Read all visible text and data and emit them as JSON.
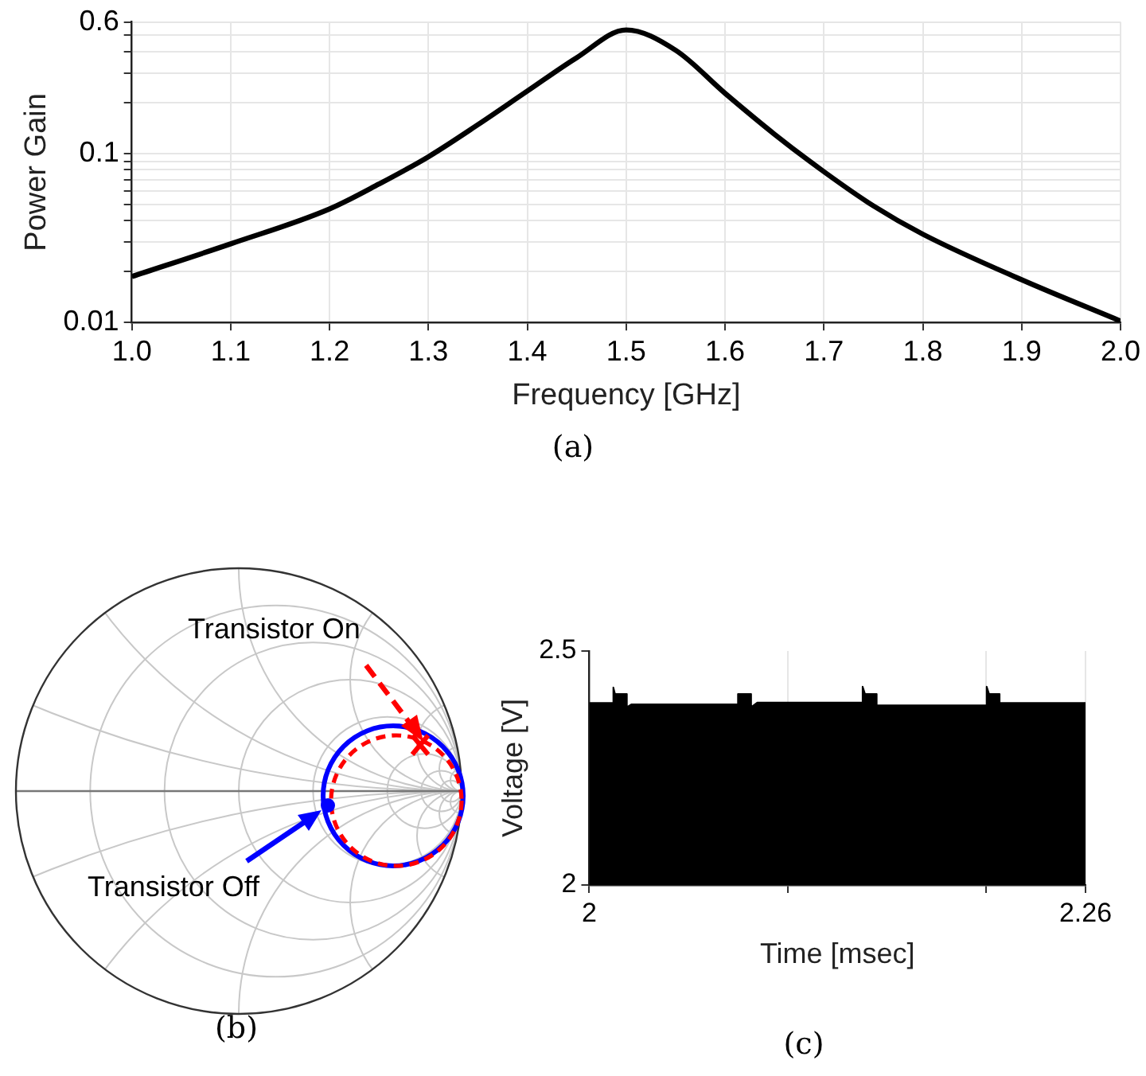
{
  "chart_data": [
    {
      "type": "line",
      "xlabel": "Frequency [GHz]",
      "ylabel": "Power Gain",
      "log": "y",
      "grid": true,
      "legend": false,
      "marker": "none",
      "line_style": "solid",
      "x": [
        1.0,
        1.1,
        1.2,
        1.25,
        1.3,
        1.35,
        1.4,
        1.45,
        1.5,
        1.55,
        1.6,
        1.65,
        1.7,
        1.75,
        1.8,
        1.9,
        2.0
      ],
      "series": [
        {
          "color": "#000000",
          "values": [
            0.0187,
            0.0292,
            0.047,
            0.066,
            0.0957,
            0.148,
            0.234,
            0.369,
            0.538,
            0.408,
            0.227,
            0.13,
            0.078,
            0.049,
            0.0333,
            0.0179,
            0.0102
          ]
        }
      ],
      "xlim": [
        1.0,
        2.0
      ],
      "xticks": [
        {
          "value": 1.0,
          "label": "1.0"
        },
        1.1,
        1.2,
        1.3,
        1.4,
        1.5,
        1.6,
        1.7,
        1.8,
        1.9,
        {
          "value": 2.0,
          "label": "2.0"
        }
      ],
      "ylim": [
        0.01,
        0.6
      ],
      "yticks": [
        0.01,
        {
          "value": 0.02,
          "label": null
        },
        {
          "value": 0.03,
          "label": null
        },
        {
          "value": 0.04,
          "label": null
        },
        {
          "value": 0.05,
          "label": null
        },
        {
          "value": 0.06,
          "label": null
        },
        {
          "value": 0.07,
          "label": null
        },
        {
          "value": 0.08,
          "label": null
        },
        {
          "value": 0.09,
          "label": null
        },
        0.1,
        {
          "value": 0.2,
          "label": null
        },
        {
          "value": 0.3,
          "label": null
        },
        {
          "value": 0.4,
          "label": null
        },
        {
          "value": 0.5,
          "label": null
        },
        0.6
      ],
      "annotations": [
        "(a)"
      ]
    },
    {
      "type": "other",
      "annotations": [
        "Transistor On",
        "Transistor Off",
        "(b)"
      ]
    },
    {
      "type": "area",
      "xlabel": "Time [msec]",
      "ylabel": "Voltage [V]",
      "grid": "x",
      "legend": false,
      "marker": "none",
      "x": [
        2,
        2.0126,
        2.0126,
        2.0135,
        2.0197,
        2.0197,
        2.022,
        2.0779,
        2.0779,
        2.0848,
        2.0848,
        2.088,
        2.1432,
        2.1432,
        2.1445,
        2.1506,
        2.1506,
        2.2082,
        2.2082,
        2.2095,
        2.215,
        2.215,
        2.26
      ],
      "series": [
        {
          "color": "#000000",
          "values": [
            2.389,
            2.389,
            2.422,
            2.408,
            2.408,
            2.38,
            2.386,
            2.386,
            2.408,
            2.408,
            2.38,
            2.39,
            2.39,
            2.424,
            2.408,
            2.408,
            2.384,
            2.384,
            2.424,
            2.408,
            2.408,
            2.389,
            2.389
          ]
        }
      ],
      "xlim": [
        2,
        2.26
      ],
      "xticks": [
        2,
        {
          "value": 2.104,
          "label": null
        },
        {
          "value": 2.208,
          "label": null
        },
        2.26
      ],
      "ylim": [
        2,
        2.5
      ],
      "yticks": [
        2,
        2.5
      ],
      "annotations": [
        "(c)"
      ]
    }
  ]
}
